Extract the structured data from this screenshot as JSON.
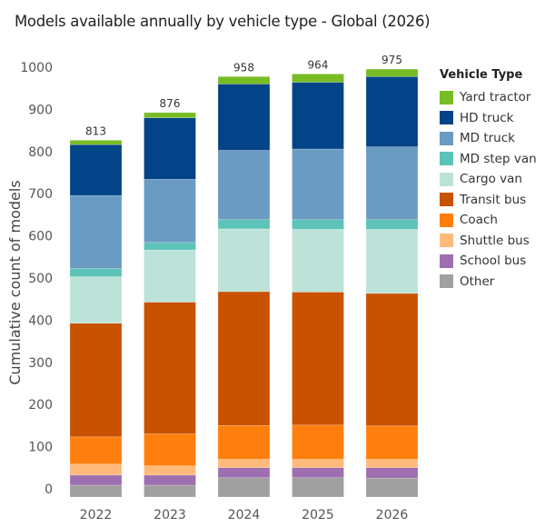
{
  "chart_data": {
    "type": "bar",
    "stacked": true,
    "title": "Models available annually by vehicle type - Global (2026)",
    "xlabel": "",
    "ylabel": "Cumulative count of models",
    "ylim": [
      0,
      1000
    ],
    "yticks": [
      0,
      100,
      200,
      300,
      400,
      500,
      600,
      700,
      800,
      900,
      1000
    ],
    "grid": false,
    "legend_title": "Vehicle Type",
    "legend_position": "right",
    "categories": [
      "2022",
      "2023",
      "2024",
      "2025",
      "2026"
    ],
    "totals": [
      813,
      876,
      958,
      964,
      975
    ],
    "series": [
      {
        "name": "Other",
        "color": "#a0a0a0",
        "values": [
          27,
          27,
          44,
          44,
          43
        ]
      },
      {
        "name": "School bus",
        "color": "#9d6fb0",
        "values": [
          23,
          23,
          23,
          23,
          24
        ]
      },
      {
        "name": "Shuttle bus",
        "color": "#ffb97a",
        "values": [
          25,
          21,
          19,
          19,
          19
        ]
      },
      {
        "name": "Coach",
        "color": "#ff7f0e",
        "values": [
          62,
          73,
          77,
          78,
          76
        ]
      },
      {
        "name": "Transit bus",
        "color": "#c85200",
        "values": [
          259,
          300,
          305,
          303,
          302
        ]
      },
      {
        "name": "Cargo van",
        "color": "#bde3d9",
        "values": [
          106,
          119,
          143,
          143,
          146
        ]
      },
      {
        "name": "MD step van",
        "color": "#5cc3b8",
        "values": [
          19,
          17,
          21,
          22,
          22
        ]
      },
      {
        "name": "MD truck",
        "color": "#6a9bc3",
        "values": [
          166,
          144,
          158,
          161,
          166
        ]
      },
      {
        "name": "HD truck",
        "color": "#034488",
        "values": [
          116,
          140,
          151,
          152,
          160
        ]
      },
      {
        "name": "Yard tractor",
        "color": "#78bc25",
        "values": [
          10,
          12,
          17,
          19,
          17
        ]
      }
    ]
  }
}
